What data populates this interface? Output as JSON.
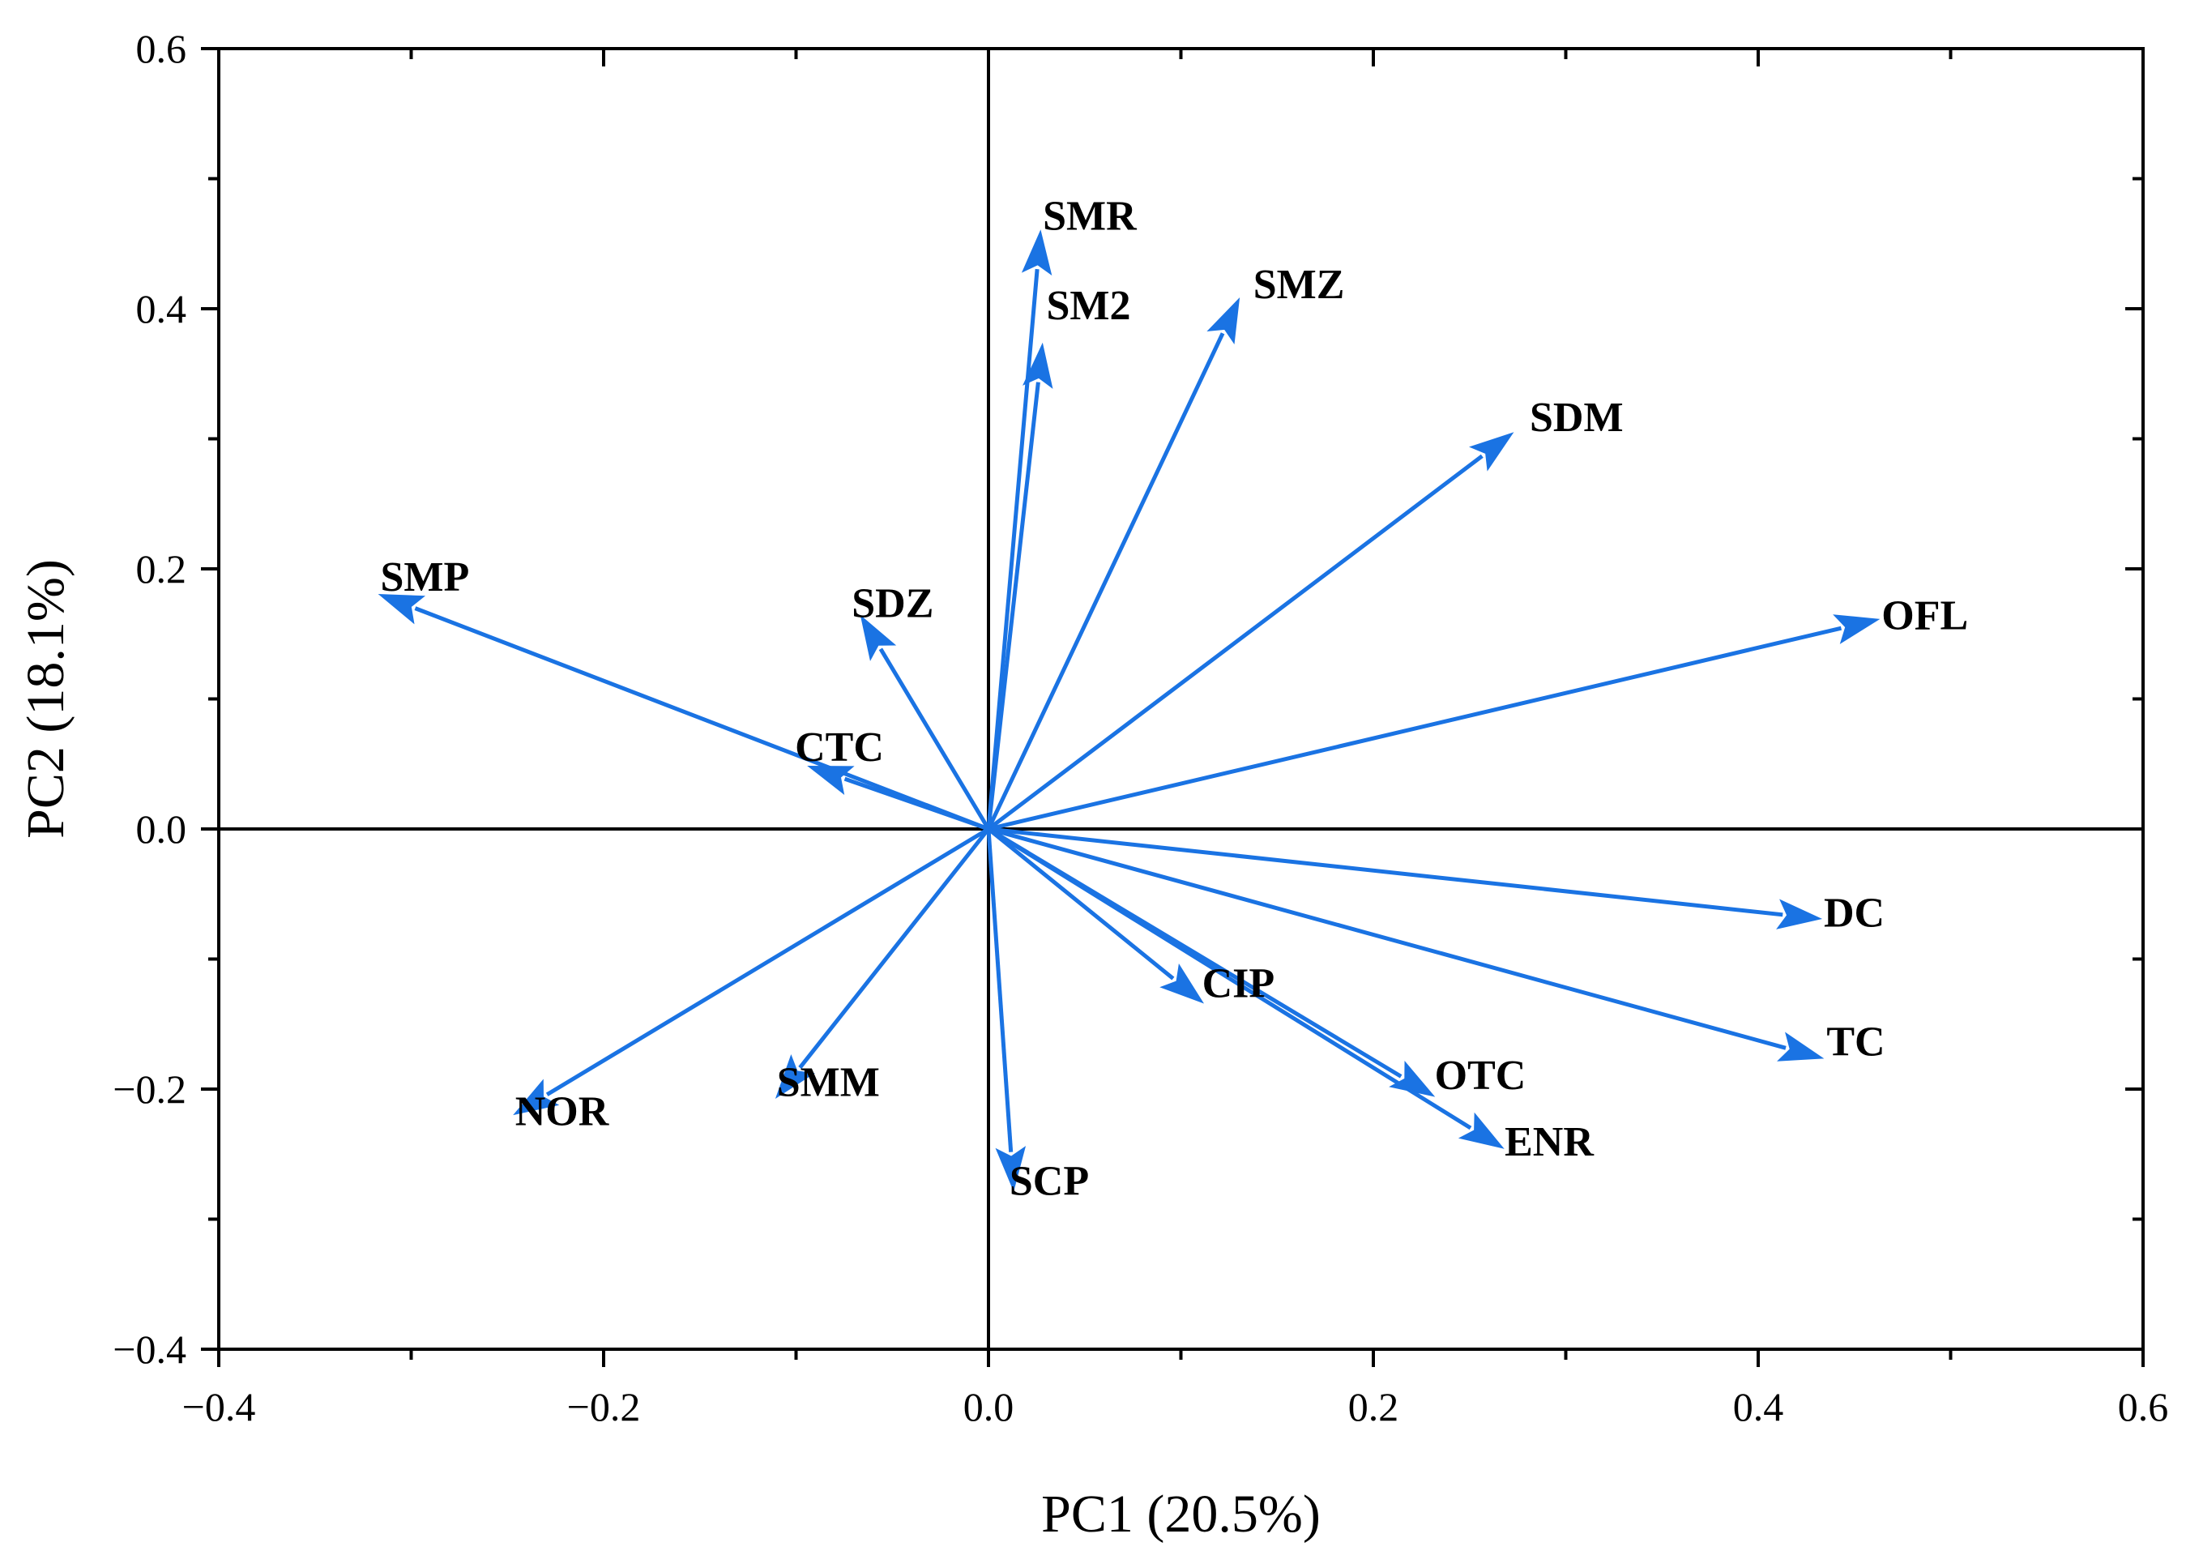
{
  "chart_data": {
    "type": "biplot",
    "title": "",
    "xlabel": "PC1 (20.5%)",
    "ylabel": "PC2 (18.1%)",
    "xlim": [
      -0.4,
      0.6
    ],
    "ylim": [
      -0.4,
      0.6
    ],
    "xticks": [
      -0.4,
      -0.2,
      0.0,
      0.2,
      0.4,
      0.6
    ],
    "yticks": [
      -0.4,
      -0.2,
      0.0,
      0.2,
      0.4,
      0.6
    ],
    "xtick_labels": [
      "−0.4",
      "−0.2",
      "0.0",
      "0.2",
      "0.4",
      "0.6"
    ],
    "ytick_labels": [
      "−0.4",
      "−0.2",
      "0.0",
      "0.2",
      "0.4",
      "0.6"
    ],
    "arrow_color": "#1a73e3",
    "vectors": [
      {
        "name": "SMR",
        "x": 0.027,
        "y": 0.459
      },
      {
        "name": "SM2",
        "x": 0.028,
        "y": 0.372
      },
      {
        "name": "SMZ",
        "x": 0.13,
        "y": 0.407
      },
      {
        "name": "SDM",
        "x": 0.272,
        "y": 0.304
      },
      {
        "name": "OFL",
        "x": 0.462,
        "y": 0.161
      },
      {
        "name": "SMP",
        "x": -0.316,
        "y": 0.18
      },
      {
        "name": "SDZ",
        "x": -0.066,
        "y": 0.163
      },
      {
        "name": "CTC",
        "x": -0.093,
        "y": 0.048
      },
      {
        "name": "DC",
        "x": 0.432,
        "y": -0.069
      },
      {
        "name": "TC",
        "x": 0.433,
        "y": -0.176
      },
      {
        "name": "CIP",
        "x": 0.111,
        "y": -0.133
      },
      {
        "name": "OTC",
        "x": 0.231,
        "y": -0.205
      },
      {
        "name": "ENR",
        "x": 0.267,
        "y": -0.245
      },
      {
        "name": "SCP",
        "x": 0.013,
        "y": -0.277
      },
      {
        "name": "SMM",
        "x": -0.11,
        "y": -0.206
      },
      {
        "name": "NOR",
        "x": -0.246,
        "y": -0.219
      }
    ]
  }
}
